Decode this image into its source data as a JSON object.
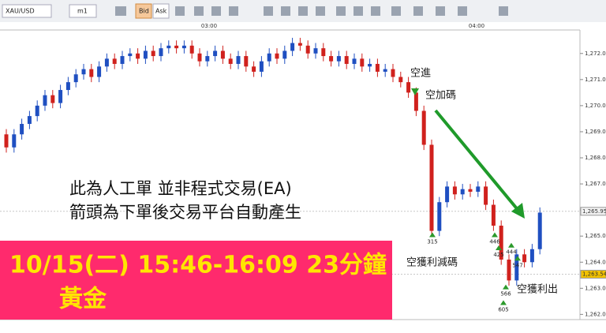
{
  "toolbar": {
    "symbol": "XAU/USD",
    "timeframe": "m1",
    "bid": "Bid",
    "ask": "Ask"
  },
  "chart_data": {
    "type": "candlestick",
    "time_labels": [
      "03:00",
      "04:00"
    ],
    "ylim": [
      1261.8,
      1272.9
    ],
    "yticks": [
      {
        "value": 1262,
        "label": "1,262.00"
      },
      {
        "value": 1263,
        "label": "1,263.00"
      },
      {
        "value": 1264,
        "label": "1,264.00"
      },
      {
        "value": 1265,
        "label": "1,265.00"
      },
      {
        "value": 1266,
        "label": "1,266.00"
      },
      {
        "value": 1267,
        "label": "1,267.00"
      },
      {
        "value": 1268,
        "label": "1,268.00"
      },
      {
        "value": 1269,
        "label": "1,269.00"
      },
      {
        "value": 1270,
        "label": "1,270.00"
      },
      {
        "value": 1271,
        "label": "1,271.00"
      },
      {
        "value": 1272,
        "label": "1,272.00"
      }
    ],
    "price_markers": [
      {
        "value": 1265.95,
        "label": "1,265.95"
      },
      {
        "value": 1263.54,
        "label": "1,263.54"
      }
    ],
    "up_color": "#1f4fc1",
    "down_color": "#d0211d",
    "open": [
      1268.9,
      1268.4,
      1268.9,
      1269.3,
      1269.6,
      1270.0,
      1270.4,
      1270.1,
      1270.6,
      1270.9,
      1271.2,
      1271.4,
      1271.1,
      1271.5,
      1271.8,
      1271.6,
      1271.9,
      1272.0,
      1271.8,
      1272.1,
      1271.9,
      1272.2,
      1272.3,
      1272.2,
      1272.3,
      1272.0,
      1271.7,
      1271.9,
      1272.1,
      1271.8,
      1271.6,
      1271.9,
      1271.5,
      1271.3,
      1271.7,
      1272.0,
      1271.8,
      1272.1,
      1272.4,
      1272.3,
      1272.0,
      1272.2,
      1271.9,
      1271.7,
      1271.9,
      1271.6,
      1271.8,
      1271.5,
      1271.6,
      1271.3,
      1271.4,
      1271.1,
      1270.9,
      1270.5,
      1269.8,
      1268.5,
      1265.2,
      1266.3,
      1266.9,
      1266.6,
      1266.8,
      1266.7,
      1266.9,
      1266.2,
      1265.4,
      1264.1,
      1263.3,
      1264.3,
      1264.0,
      1264.5
    ],
    "high": [
      1269.1,
      1269.1,
      1269.5,
      1269.8,
      1270.2,
      1270.6,
      1270.6,
      1270.8,
      1271.1,
      1271.4,
      1271.6,
      1271.6,
      1271.7,
      1272.0,
      1272.0,
      1272.1,
      1272.2,
      1272.2,
      1272.3,
      1272.3,
      1272.4,
      1272.5,
      1272.5,
      1272.5,
      1272.5,
      1272.2,
      1272.1,
      1272.3,
      1272.3,
      1272.0,
      1272.1,
      1272.1,
      1271.7,
      1271.9,
      1272.2,
      1272.2,
      1272.3,
      1272.6,
      1272.6,
      1272.5,
      1272.4,
      1272.4,
      1272.1,
      1272.1,
      1272.1,
      1272.0,
      1272.0,
      1271.8,
      1271.8,
      1271.6,
      1271.6,
      1271.3,
      1271.1,
      1270.7,
      1270.0,
      1268.7,
      1266.5,
      1267.1,
      1267.1,
      1267.0,
      1267.0,
      1267.1,
      1267.1,
      1266.4,
      1265.6,
      1264.3,
      1264.5,
      1264.5,
      1264.7,
      1266.1
    ],
    "low": [
      1268.2,
      1268.2,
      1268.7,
      1269.1,
      1269.4,
      1269.8,
      1269.9,
      1269.9,
      1270.4,
      1270.7,
      1271.0,
      1270.9,
      1270.9,
      1271.3,
      1271.4,
      1271.4,
      1271.7,
      1271.6,
      1271.6,
      1271.7,
      1271.7,
      1272.0,
      1272.0,
      1272.0,
      1271.8,
      1271.5,
      1271.5,
      1271.7,
      1271.6,
      1271.4,
      1271.4,
      1271.3,
      1271.1,
      1271.1,
      1271.5,
      1271.6,
      1271.6,
      1271.9,
      1272.1,
      1271.8,
      1271.8,
      1271.7,
      1271.5,
      1271.5,
      1271.4,
      1271.4,
      1271.3,
      1271.3,
      1271.1,
      1271.1,
      1270.9,
      1270.7,
      1270.3,
      1269.6,
      1268.3,
      1265.0,
      1265.0,
      1266.1,
      1266.4,
      1266.4,
      1266.5,
      1266.5,
      1266.0,
      1265.2,
      1263.9,
      1263.1,
      1263.1,
      1263.8,
      1263.8,
      1264.3
    ],
    "close": [
      1268.4,
      1268.9,
      1269.3,
      1269.6,
      1270.0,
      1270.4,
      1270.1,
      1270.6,
      1270.9,
      1271.2,
      1271.4,
      1271.1,
      1271.5,
      1271.8,
      1271.6,
      1271.9,
      1272.0,
      1271.8,
      1272.1,
      1271.9,
      1272.2,
      1272.3,
      1272.2,
      1272.3,
      1272.0,
      1271.7,
      1271.9,
      1272.1,
      1271.8,
      1271.6,
      1271.9,
      1271.5,
      1271.3,
      1271.7,
      1272.0,
      1271.8,
      1272.1,
      1272.4,
      1272.3,
      1272.0,
      1272.2,
      1271.9,
      1271.7,
      1271.9,
      1271.6,
      1271.8,
      1271.5,
      1271.6,
      1271.3,
      1271.4,
      1271.1,
      1270.9,
      1270.5,
      1269.8,
      1268.5,
      1265.2,
      1266.3,
      1266.9,
      1266.6,
      1266.8,
      1266.7,
      1266.9,
      1266.2,
      1265.4,
      1264.1,
      1263.3,
      1264.3,
      1264.0,
      1264.5,
      1265.9
    ],
    "trade_markers": [
      {
        "label": "315",
        "price": 1264.9
      },
      {
        "label": "446",
        "price": 1264.9
      },
      {
        "label": "425",
        "price": 1264.4
      },
      {
        "label": "444",
        "price": 1264.5
      },
      {
        "label": "547",
        "price": 1264.0
      },
      {
        "label": "566",
        "price": 1262.9
      },
      {
        "label": "605",
        "price": 1262.3
      }
    ],
    "annotations": {
      "entry": "空進",
      "add": "空加碼",
      "reduce": "空獲利減碼",
      "exit": "空獲利出"
    }
  },
  "note": {
    "line1": "此為人工單 並非程式交易(EA)",
    "line2": "箭頭為下單後交易平台自動產生"
  },
  "banner": {
    "line1": "10/15(二) 15:46-16:09 23分鐘",
    "line2": "黃金"
  }
}
